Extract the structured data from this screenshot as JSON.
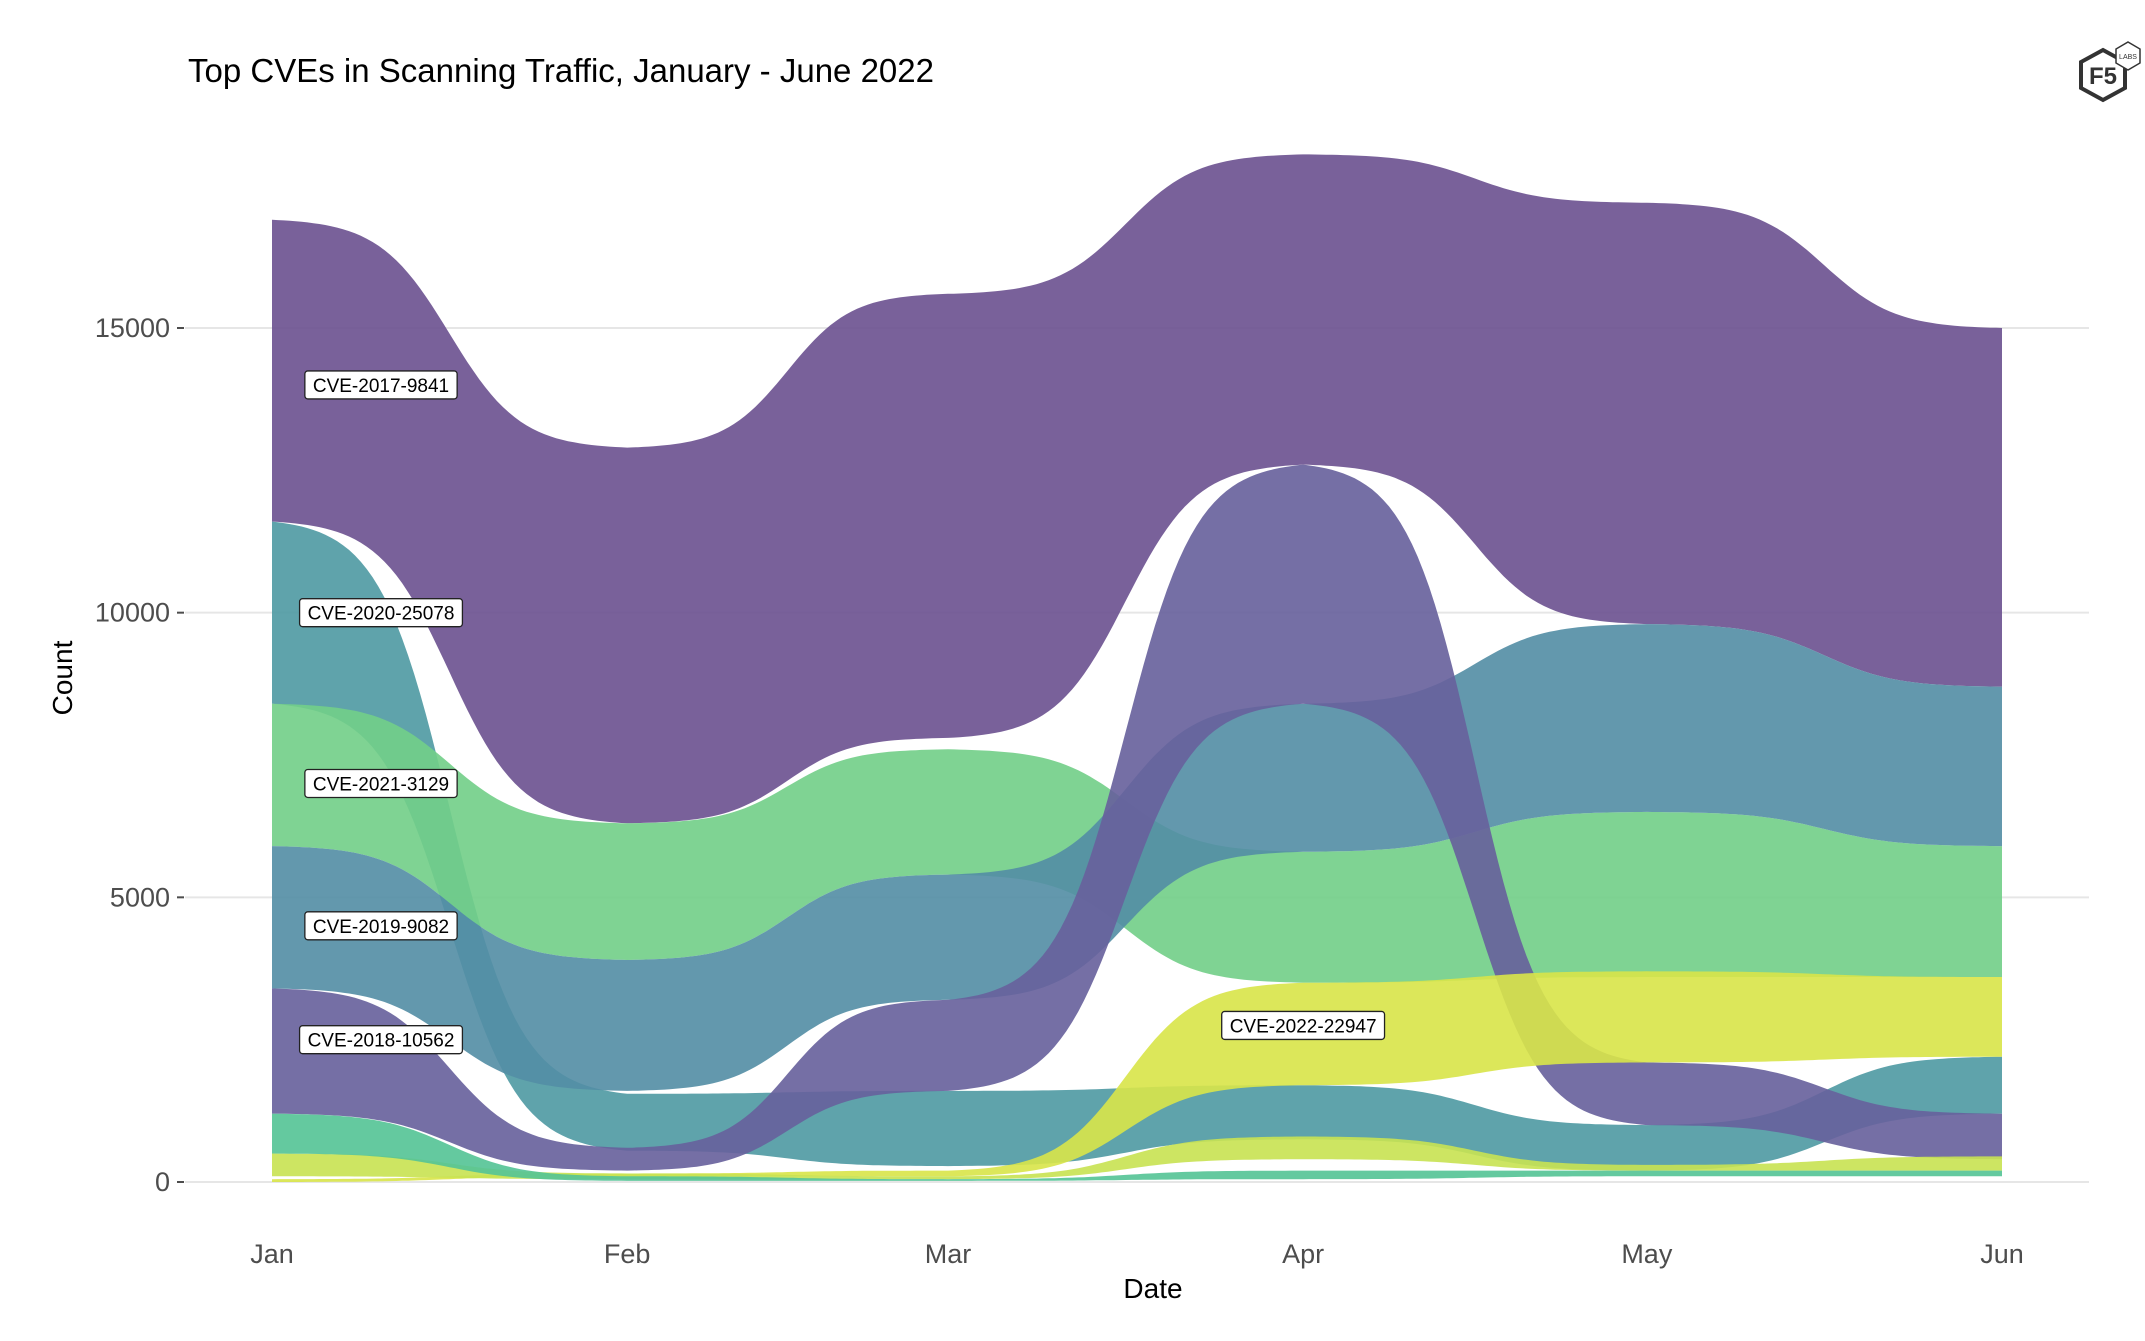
{
  "logo": {
    "text": "F5",
    "subtext": "LABS"
  },
  "chart_data": {
    "type": "area",
    "subtype": "bump-ribbon",
    "title": "Top CVEs in Scanning Traffic, January - June 2022",
    "xlabel": "Date",
    "ylabel": "Count",
    "x": [
      "Jan",
      "Feb",
      "Mar",
      "Apr",
      "May",
      "Jun"
    ],
    "x_day_offsets": [
      0,
      31,
      59,
      90,
      120,
      151
    ],
    "ylim": [
      0,
      18500
    ],
    "yticks": [
      0,
      5000,
      10000,
      15000
    ],
    "ytick_labels": [
      "0",
      "5000",
      "10000",
      "15000"
    ],
    "grid": true,
    "legend": "none (direct labels)",
    "series": [
      {
        "name": "CVE-2017-9841",
        "label": "CVE-2017-9841",
        "color": "#6c5190",
        "lower": [
          11600,
          6300,
          7800,
          12600,
          9800,
          8700
        ],
        "upper": [
          16900,
          12900,
          15600,
          18050,
          17200,
          15000
        ],
        "label_at": 0,
        "label_value": 14000
      },
      {
        "name": "CVE-2020-25078",
        "label": "CVE-2020-25078",
        "color": "#4f9aa3",
        "lower": [
          8400,
          550,
          280,
          750,
          200,
          1200
        ],
        "upper": [
          11600,
          1550,
          1600,
          1700,
          1000,
          2200
        ],
        "label_at": 0,
        "label_value": 10000
      },
      {
        "name": "CVE-2021-3129",
        "label": "CVE-2021-3129",
        "color": "#72cf88",
        "lower": [
          5900,
          3900,
          5400,
          3500,
          3600,
          3600
        ],
        "upper": [
          8400,
          6300,
          7600,
          5800,
          6500,
          5900
        ],
        "label_at": 0,
        "label_value": 7000
      },
      {
        "name": "CVE-2019-9082",
        "label": "CVE-2019-9082",
        "color": "#548ea5",
        "lower": [
          3400,
          1600,
          3200,
          5800,
          6500,
          5900
        ],
        "upper": [
          5900,
          3900,
          5400,
          8400,
          9800,
          8700
        ],
        "label_at": 0,
        "label_value": 4500
      },
      {
        "name": "CVE-2018-10562",
        "label": "CVE-2018-10562",
        "color": "#67619c",
        "lower": [
          1200,
          200,
          1600,
          8400,
          1000,
          400
        ],
        "upper": [
          3400,
          600,
          3200,
          12600,
          2100,
          1200
        ],
        "label_at": 0,
        "label_value": 2500
      },
      {
        "name": "CVE-2022-22947",
        "label": "CVE-2022-22947",
        "color": "#d9e54a",
        "lower": [
          0,
          100,
          100,
          1700,
          2100,
          2200
        ],
        "upper": [
          50,
          150,
          200,
          3500,
          3700,
          3600
        ],
        "label_at": 3,
        "label_value": 2750
      },
      {
        "name": "other-lime",
        "label": "",
        "color": "#c8e252",
        "lower": [
          100,
          50,
          50,
          400,
          200,
          200
        ],
        "upper": [
          500,
          150,
          100,
          800,
          300,
          450
        ]
      },
      {
        "name": "other-teal-green",
        "label": "",
        "color": "#55c496",
        "lower": [
          500,
          20,
          20,
          50,
          100,
          100
        ],
        "upper": [
          1200,
          100,
          50,
          200,
          200,
          200
        ]
      }
    ]
  }
}
